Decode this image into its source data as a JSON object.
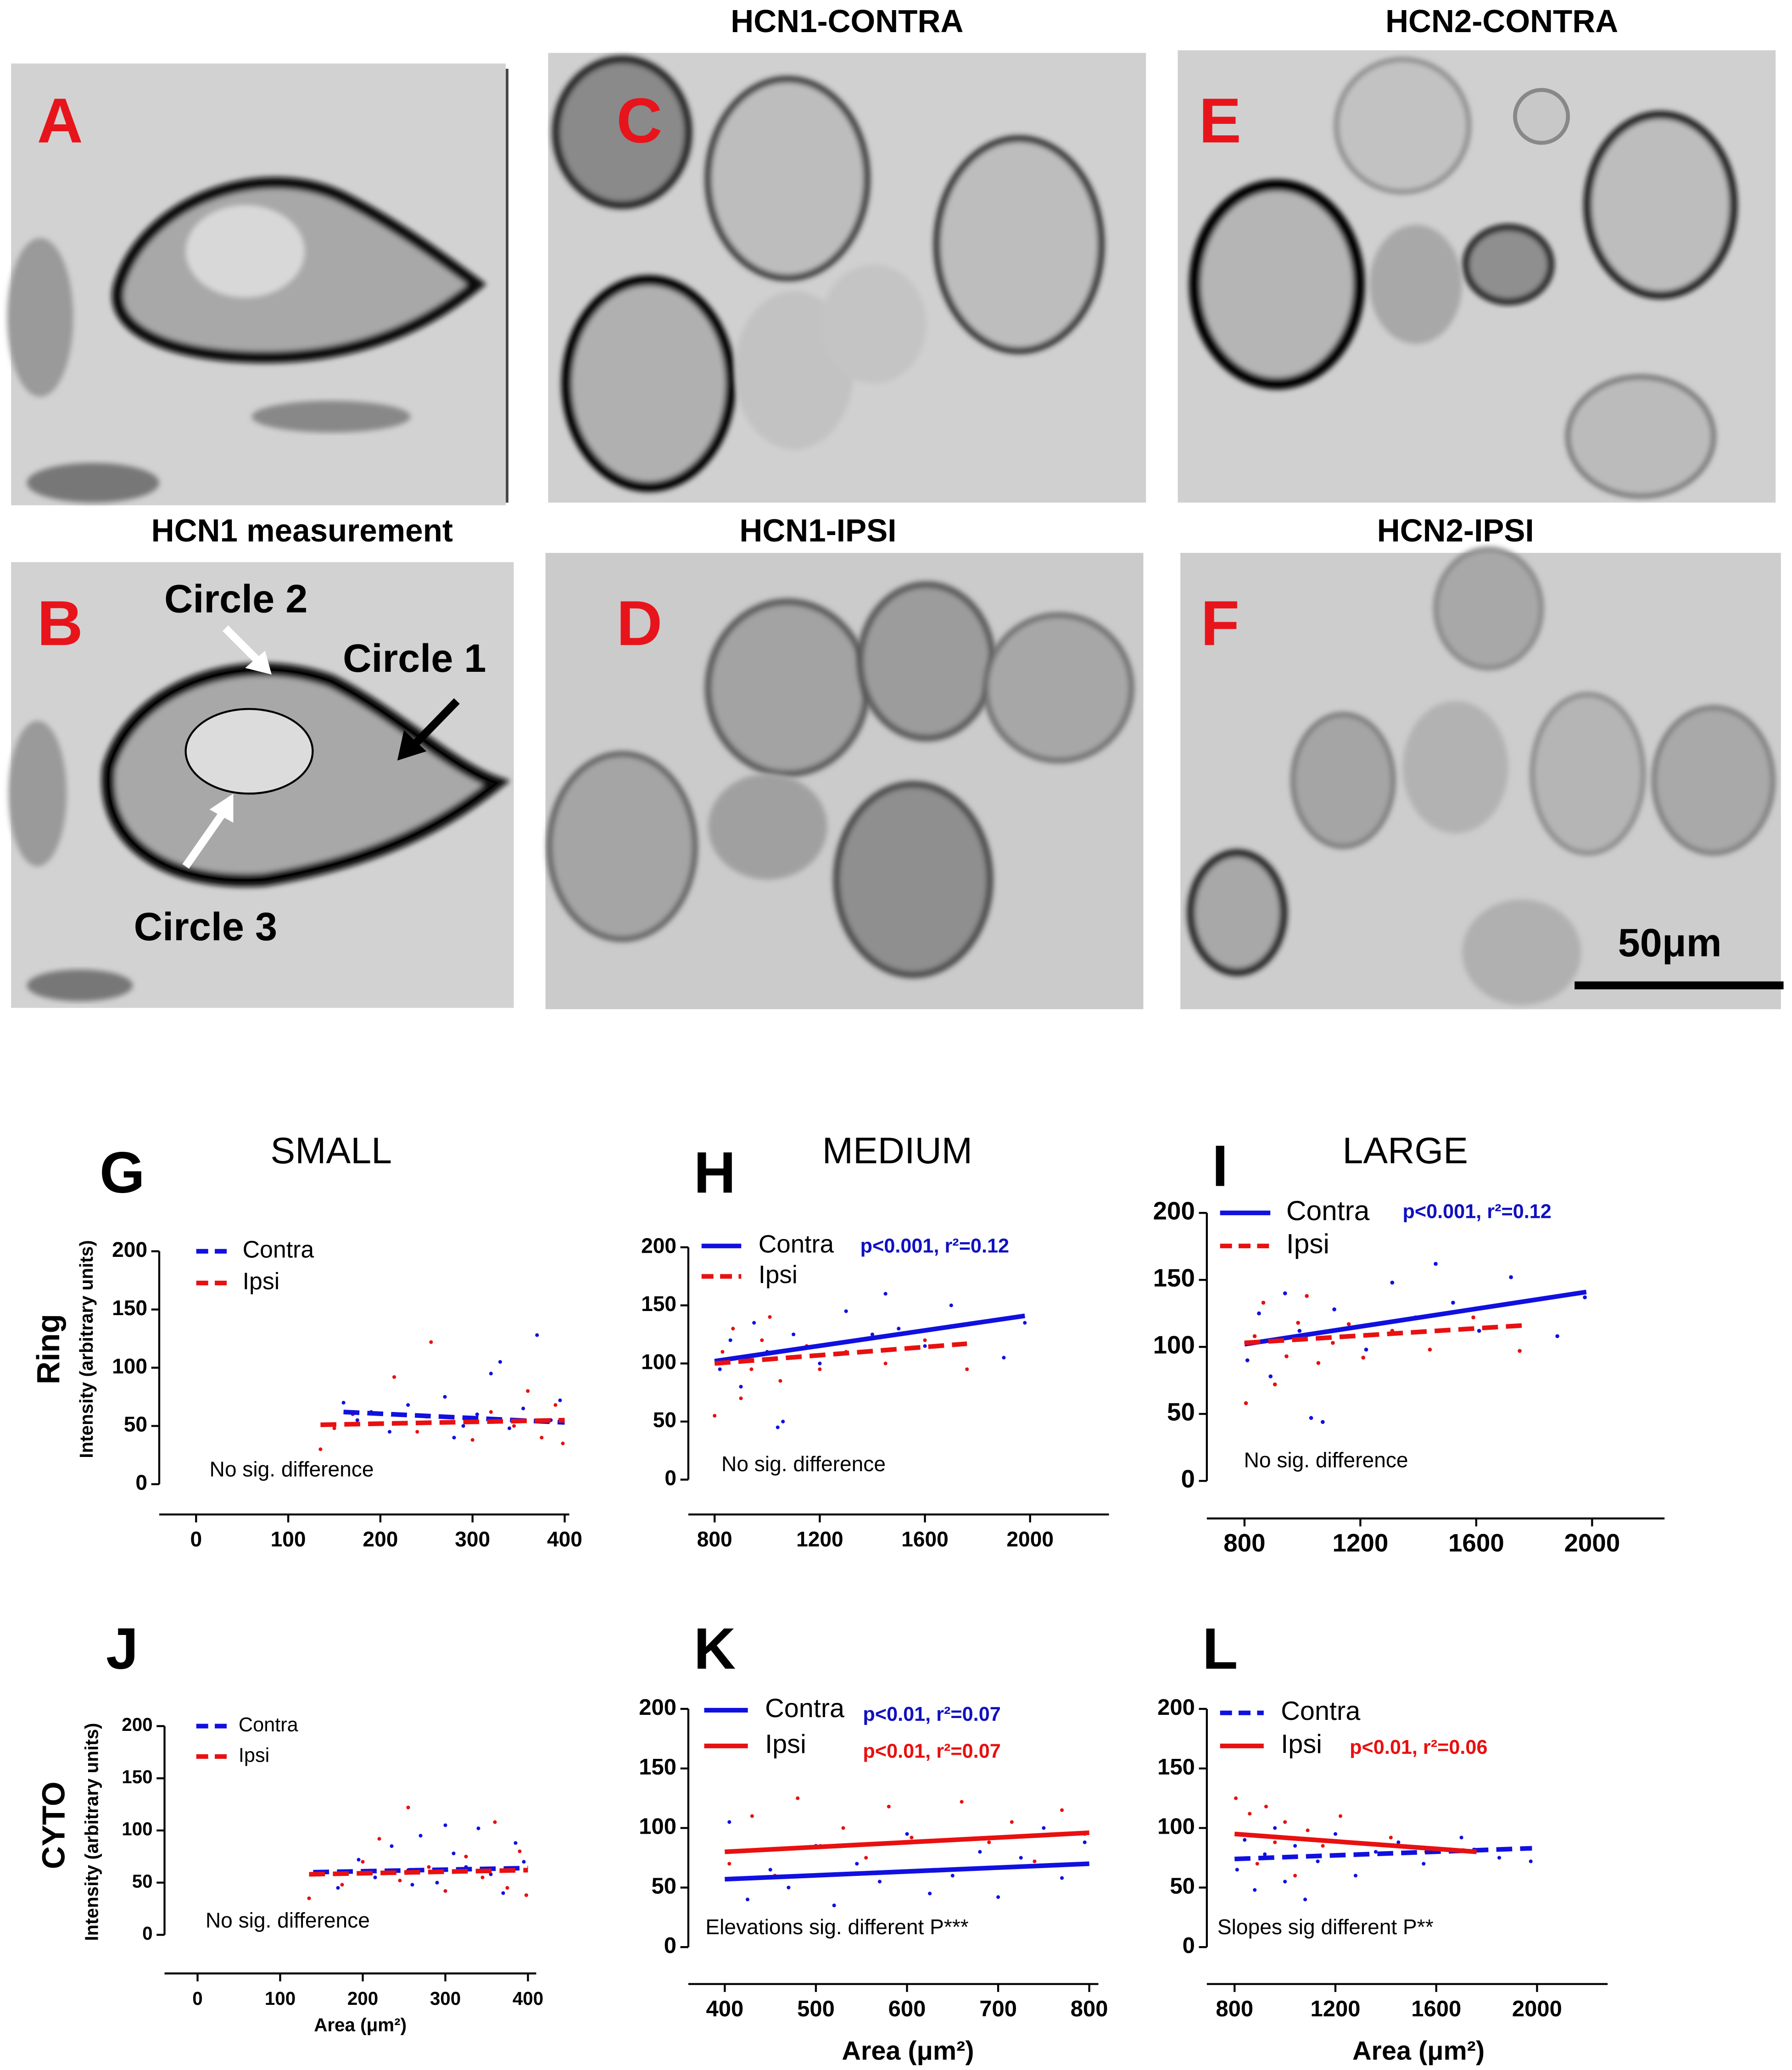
{
  "figure": {
    "panels": [
      {
        "letter": "A"
      },
      {
        "letter": "B",
        "title": "HCN1 measurement",
        "labels": [
          "Circle 2",
          "Circle 1",
          "Circle 3"
        ]
      },
      {
        "letter": "C",
        "title": "HCN1-CONTRA"
      },
      {
        "letter": "D",
        "title": "HCN1-IPSI"
      },
      {
        "letter": "E",
        "title": "HCN2-CONTRA"
      },
      {
        "letter": "F",
        "title": "HCN2-IPSI"
      }
    ],
    "scale_bar": "50μm"
  },
  "chart_data": [
    {
      "type": "scatter",
      "panel": "G",
      "heading": "SMALL",
      "row_label": "Ring",
      "ylabel": "Intensity (arbitrary units)",
      "xlim": [
        -40,
        405
      ],
      "ylim": [
        -26,
        200
      ],
      "xticks": [
        0,
        100,
        200,
        300,
        400
      ],
      "yticks": [
        0,
        50,
        100,
        150,
        200
      ],
      "annotations": [
        {
          "text": "No sig. difference",
          "color": "#000000"
        }
      ],
      "series": [
        {
          "name": "Contra",
          "color": "#1010e0",
          "line_style": "dashed",
          "x": [
            160,
            175,
            190,
            210,
            230,
            250,
            270,
            290,
            305,
            320,
            340,
            355,
            370,
            385,
            395,
            330,
            280
          ],
          "y": [
            70,
            55,
            62,
            45,
            68,
            58,
            75,
            50,
            60,
            95,
            48,
            65,
            128,
            55,
            72,
            105,
            40
          ],
          "fit": {
            "x": [
              160,
              400
            ],
            "y": [
              62,
              53
            ]
          }
        },
        {
          "name": "Ipsi",
          "color": "#e81010",
          "line_style": "dashed",
          "x": [
            135,
            150,
            170,
            200,
            215,
            240,
            255,
            275,
            300,
            320,
            345,
            360,
            375,
            390,
            398
          ],
          "y": [
            30,
            48,
            60,
            52,
            92,
            45,
            122,
            58,
            38,
            62,
            50,
            80,
            40,
            68,
            35
          ],
          "fit": {
            "x": [
              135,
              400
            ],
            "y": [
              51,
              55
            ]
          }
        }
      ]
    },
    {
      "type": "scatter",
      "panel": "H",
      "heading": "MEDIUM",
      "xlim": [
        700,
        2300
      ],
      "ylim": [
        -30,
        200
      ],
      "xticks": [
        800,
        1200,
        1600,
        2000
      ],
      "yticks": [
        0,
        50,
        100,
        150,
        200
      ],
      "annotations": [
        {
          "text": "p<0.001, r²=0.12",
          "color": "#1010c0",
          "bold": true
        },
        {
          "text": "No sig. difference",
          "color": "#000000"
        }
      ],
      "series": [
        {
          "name": "Contra",
          "color": "#1010e0",
          "line_style": "solid",
          "x": [
            820,
            860,
            900,
            950,
            1000,
            1040,
            1060,
            1100,
            1200,
            1300,
            1400,
            1450,
            1500,
            1600,
            1700,
            1900,
            1980
          ],
          "y": [
            95,
            120,
            80,
            135,
            110,
            45,
            50,
            125,
            100,
            145,
            125,
            160,
            130,
            115,
            150,
            105,
            135
          ],
          "fit": {
            "x": [
              800,
              1980
            ],
            "y": [
              102,
              141
            ]
          }
        },
        {
          "name": "Ipsi",
          "color": "#e81010",
          "line_style": "dashed",
          "x": [
            800,
            830,
            870,
            900,
            940,
            980,
            1010,
            1050,
            1100,
            1150,
            1200,
            1300,
            1450,
            1600,
            1760
          ],
          "y": [
            55,
            110,
            130,
            70,
            95,
            120,
            140,
            85,
            105,
            115,
            95,
            110,
            100,
            120,
            95
          ],
          "fit": {
            "x": [
              800,
              1760
            ],
            "y": [
              100,
              117
            ]
          }
        }
      ]
    },
    {
      "type": "scatter",
      "panel": "I",
      "heading": "LARGE",
      "xlim": [
        670,
        2250
      ],
      "ylim": [
        -28,
        200
      ],
      "xticks": [
        800,
        1200,
        1600,
        2000
      ],
      "yticks": [
        0,
        50,
        100,
        150,
        200
      ],
      "annotations": [
        {
          "text": "p<0.001, r²=0.12",
          "color": "#1010c0",
          "bold": true
        },
        {
          "text": "No sig. difference",
          "color": "#000000"
        }
      ],
      "series": [
        {
          "name": "Contra",
          "color": "#1010e0",
          "line_style": "solid",
          "x": [
            810,
            850,
            890,
            940,
            990,
            1030,
            1070,
            1110,
            1220,
            1310,
            1390,
            1460,
            1520,
            1610,
            1720,
            1880,
            1975
          ],
          "y": [
            90,
            125,
            78,
            140,
            112,
            47,
            44,
            128,
            98,
            148,
            122,
            162,
            133,
            112,
            152,
            108,
            137
          ],
          "fit": {
            "x": [
              800,
              1980
            ],
            "y": [
              102,
              141
            ]
          }
        },
        {
          "name": "Ipsi",
          "color": "#e81010",
          "line_style": "dashed",
          "x": [
            805,
            835,
            865,
            905,
            945,
            985,
            1015,
            1055,
            1105,
            1160,
            1210,
            1310,
            1440,
            1590,
            1750
          ],
          "y": [
            58,
            108,
            133,
            72,
            93,
            118,
            138,
            88,
            103,
            117,
            92,
            112,
            98,
            122,
            97
          ],
          "fit": {
            "x": [
              800,
              1760
            ],
            "y": [
              103,
              116
            ]
          }
        }
      ]
    },
    {
      "type": "scatter",
      "panel": "J",
      "row_label": "CYTO",
      "ylabel": "Intensity (arbitrary units)",
      "xlabel": "Area (μm²)",
      "xlim": [
        -40,
        410
      ],
      "ylim": [
        -37,
        200
      ],
      "xticks": [
        0,
        100,
        200,
        300,
        400
      ],
      "yticks": [
        0,
        50,
        100,
        150,
        200
      ],
      "annotations": [
        {
          "text": "No sig. difference",
          "color": "#000000"
        }
      ],
      "series": [
        {
          "name": "Contra",
          "color": "#1010e0",
          "line_style": "dashed",
          "x": [
            155,
            170,
            195,
            215,
            235,
            255,
            270,
            290,
            310,
            325,
            340,
            355,
            370,
            385,
            395,
            300,
            260
          ],
          "y": [
            60,
            45,
            72,
            55,
            85,
            62,
            95,
            50,
            78,
            65,
            102,
            58,
            40,
            88,
            70,
            105,
            48
          ],
          "fit": {
            "x": [
              140,
              400
            ],
            "y": [
              60,
              64
            ]
          }
        },
        {
          "name": "Ipsi",
          "color": "#e81010",
          "line_style": "dashed",
          "x": [
            135,
            150,
            175,
            200,
            220,
            245,
            255,
            280,
            300,
            325,
            345,
            360,
            375,
            390,
            398
          ],
          "y": [
            35,
            58,
            48,
            70,
            92,
            52,
            122,
            65,
            42,
            75,
            55,
            108,
            45,
            80,
            38
          ],
          "fit": {
            "x": [
              135,
              400
            ],
            "y": [
              58,
              62
            ]
          }
        }
      ]
    },
    {
      "type": "scatter",
      "panel": "K",
      "xlabel": "Area (μm²)",
      "xlim": [
        360,
        810
      ],
      "ylim": [
        -31,
        200
      ],
      "xticks": [
        400,
        500,
        600,
        700,
        800
      ],
      "yticks": [
        0,
        50,
        100,
        150,
        200
      ],
      "annotations": [
        {
          "text": "p<0.01, r²=0.07",
          "color": "#1010c0",
          "bold": true
        },
        {
          "text": "p<0.01, r²=0.07",
          "color": "#e81010",
          "bold": true
        },
        {
          "text": "Elevations sig. different P***",
          "color": "#000000"
        }
      ],
      "series": [
        {
          "name": "Contra",
          "color": "#1010e0",
          "line_style": "solid",
          "x": [
            405,
            425,
            450,
            470,
            500,
            520,
            545,
            570,
            600,
            625,
            650,
            680,
            700,
            725,
            750,
            770,
            795
          ],
          "y": [
            105,
            40,
            65,
            50,
            85,
            35,
            70,
            55,
            95,
            45,
            60,
            80,
            42,
            75,
            100,
            58,
            88
          ],
          "fit": {
            "x": [
              400,
              800
            ],
            "y": [
              57,
              70
            ]
          }
        },
        {
          "name": "Ipsi",
          "color": "#e81010",
          "line_style": "solid",
          "x": [
            405,
            430,
            455,
            480,
            505,
            530,
            555,
            580,
            605,
            630,
            660,
            690,
            715,
            740,
            770,
            795
          ],
          "y": [
            70,
            110,
            60,
            125,
            85,
            100,
            75,
            118,
            92,
            65,
            122,
            88,
            105,
            72,
            115,
            95
          ],
          "fit": {
            "x": [
              400,
              800
            ],
            "y": [
              80,
              96
            ]
          }
        }
      ]
    },
    {
      "type": "scatter",
      "panel": "L",
      "xlabel": "Area (μm²)",
      "xlim": [
        690,
        2280
      ],
      "ylim": [
        -31,
        200
      ],
      "xticks": [
        800,
        1200,
        1600,
        2000
      ],
      "yticks": [
        0,
        50,
        100,
        150,
        200
      ],
      "annotations": [
        {
          "text": "p<0.01, r²=0.06",
          "color": "#e81010",
          "bold": true
        },
        {
          "text": "Slopes sig different P**",
          "color": "#000000"
        }
      ],
      "series": [
        {
          "name": "Contra",
          "color": "#1010e0",
          "line_style": "dashed",
          "x": [
            810,
            840,
            880,
            920,
            960,
            1000,
            1040,
            1080,
            1130,
            1200,
            1280,
            1360,
            1450,
            1550,
            1700,
            1850,
            1975
          ],
          "y": [
            65,
            90,
            48,
            78,
            100,
            55,
            85,
            40,
            72,
            95,
            60,
            80,
            88,
            70,
            92,
            75,
            72
          ],
          "fit": {
            "x": [
              800,
              1980
            ],
            "y": [
              74,
              83
            ]
          }
        },
        {
          "name": "Ipsi",
          "color": "#e81010",
          "line_style": "solid",
          "x": [
            805,
            830,
            860,
            890,
            925,
            960,
            1000,
            1040,
            1090,
            1150,
            1220,
            1300,
            1420,
            1560,
            1750
          ],
          "y": [
            125,
            95,
            112,
            70,
            118,
            88,
            105,
            60,
            98,
            85,
            110,
            78,
            92,
            80,
            82
          ],
          "fit": {
            "x": [
              800,
              1760
            ],
            "y": [
              95,
              80
            ]
          }
        }
      ]
    }
  ]
}
